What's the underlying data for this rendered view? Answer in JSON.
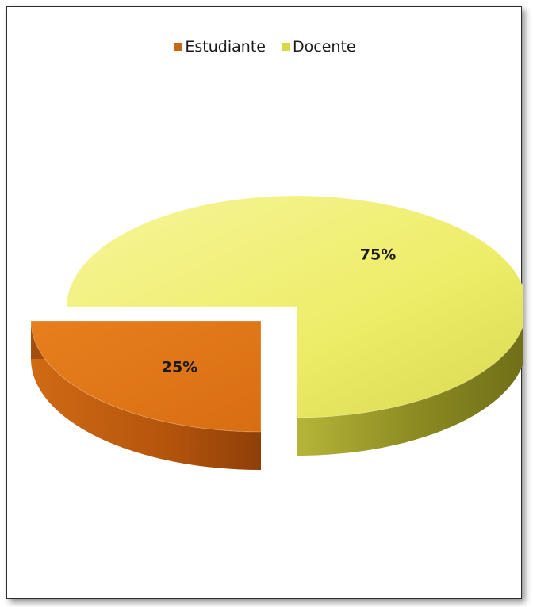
{
  "chart_data": {
    "type": "pie",
    "style": "3d-exploded",
    "categories": [
      "Estudiante",
      "Docente"
    ],
    "values": [
      25,
      75
    ],
    "data_labels": [
      "25%",
      "75%"
    ],
    "colors": {
      "Estudiante": "#e07b1a",
      "Docente": "#f1f06a"
    },
    "legend_position": "top"
  }
}
